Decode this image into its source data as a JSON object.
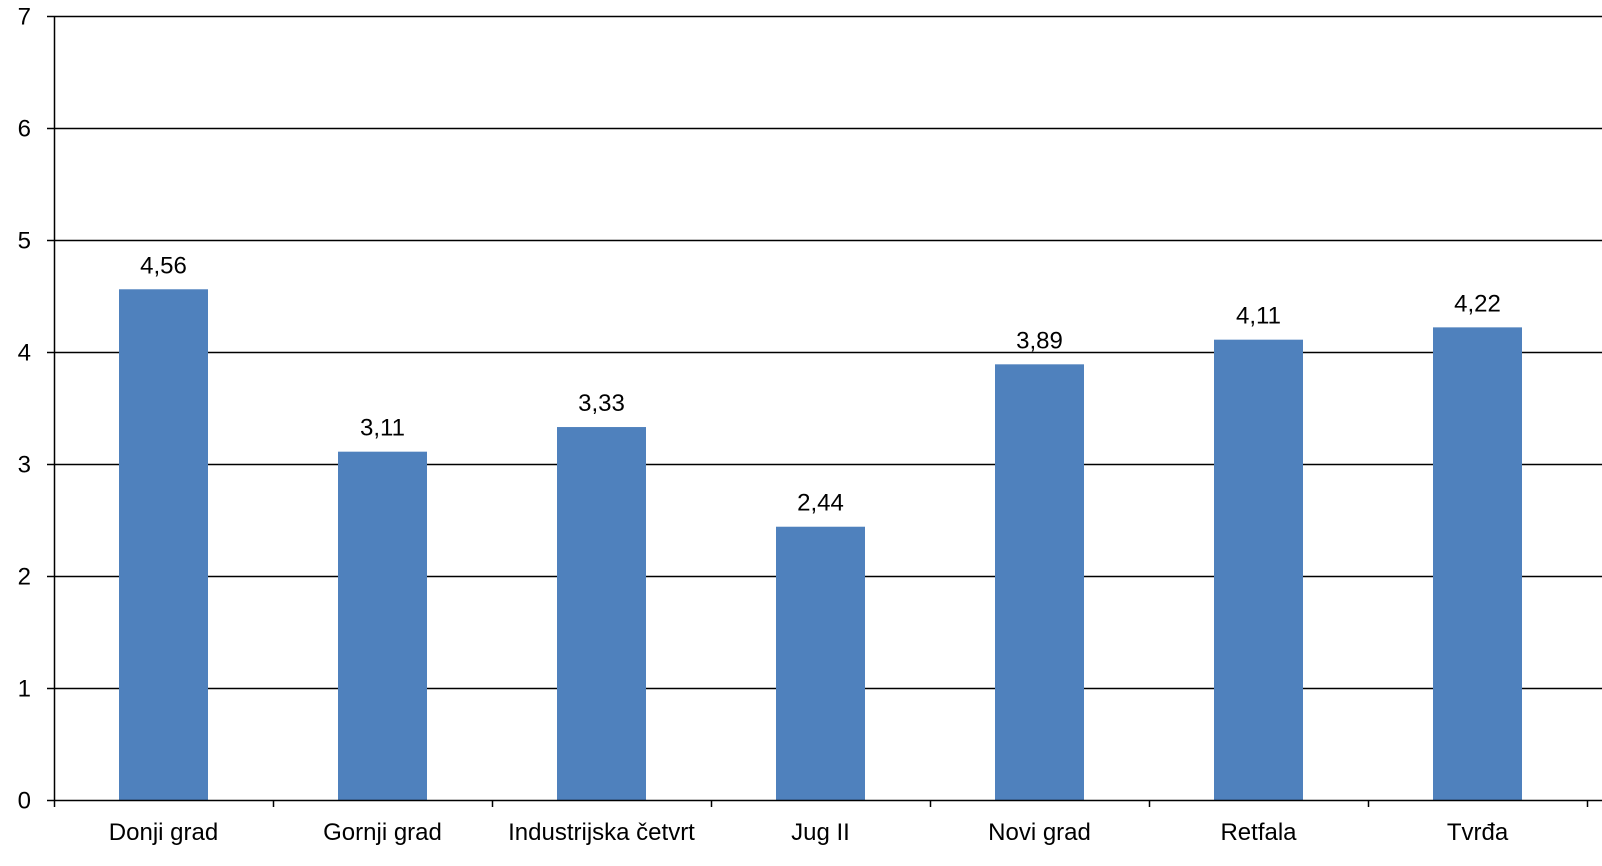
{
  "chart_data": {
    "type": "bar",
    "categories": [
      "Donji grad",
      "Gornji grad",
      "Industrijska četvrt",
      "Jug II",
      "Novi grad",
      "Retfala",
      "Tvrđa"
    ],
    "series": [
      {
        "values": [
          4.56,
          3.11,
          3.33,
          2.44,
          3.89,
          4.11,
          4.22
        ],
        "color": "#4f81bd"
      }
    ],
    "data_labels": [
      "4,56",
      "3,11",
      "3,33",
      "2,44",
      "3,89",
      "4,11",
      "4,22"
    ],
    "ylim": [
      0,
      7
    ],
    "yticks": [
      0,
      1,
      2,
      3,
      4,
      5,
      6,
      7
    ],
    "ytick_labels": [
      "0",
      "1",
      "2",
      "3",
      "4",
      "5",
      "6",
      "7"
    ],
    "grid": true,
    "legend": "none",
    "title": "",
    "xlabel": "",
    "ylabel": ""
  }
}
